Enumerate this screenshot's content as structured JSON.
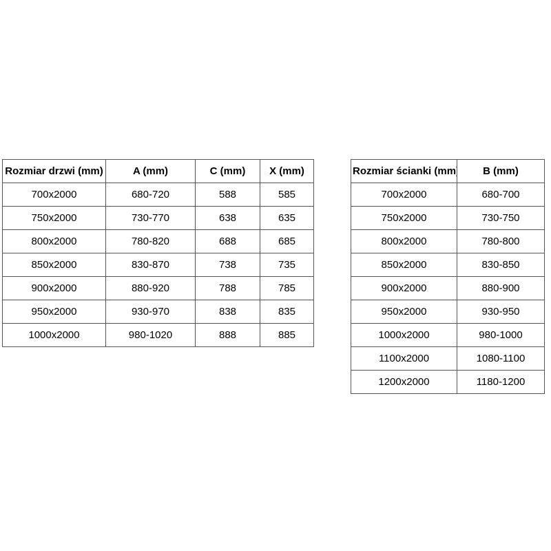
{
  "page": {
    "background_color": "#ffffff",
    "text_color": "#000000",
    "border_color": "#555555"
  },
  "doors_table": {
    "headers": [
      "Rozmiar drzwi (mm)",
      "A (mm)",
      "C (mm)",
      "X (mm)"
    ],
    "rows": [
      [
        "700x2000",
        "680-720",
        "588",
        "585"
      ],
      [
        "750x2000",
        "730-770",
        "638",
        "635"
      ],
      [
        "800x2000",
        "780-820",
        "688",
        "685"
      ],
      [
        "850x2000",
        "830-870",
        "738",
        "735"
      ],
      [
        "900x2000",
        "880-920",
        "788",
        "785"
      ],
      [
        "950x2000",
        "930-970",
        "838",
        "835"
      ],
      [
        "1000x2000",
        "980-1020",
        "888",
        "885"
      ]
    ]
  },
  "walls_table": {
    "headers": [
      "Rozmiar ścianki (mm)",
      "B (mm)"
    ],
    "rows": [
      [
        "700x2000",
        "680-700"
      ],
      [
        "750x2000",
        "730-750"
      ],
      [
        "800x2000",
        "780-800"
      ],
      [
        "850x2000",
        "830-850"
      ],
      [
        "900x2000",
        "880-900"
      ],
      [
        "950x2000",
        "930-950"
      ],
      [
        "1000x2000",
        "980-1000"
      ],
      [
        "1100x2000",
        "1080-1100"
      ],
      [
        "1200x2000",
        "1180-1200"
      ]
    ]
  }
}
